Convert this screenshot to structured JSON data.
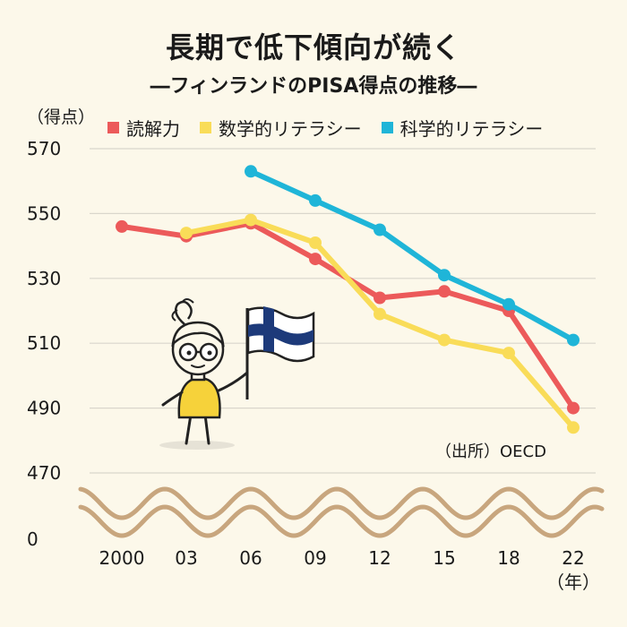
{
  "header": {
    "title": "長期で低下傾向が続く",
    "subtitle": "―フィンランドのPISA得点の推移―"
  },
  "chart_data": {
    "type": "line",
    "x": [
      "2000",
      "03",
      "06",
      "09",
      "12",
      "15",
      "18",
      "22"
    ],
    "x_unit_label": "（年）",
    "y_unit_label": "（得点）",
    "yticks": [
      0,
      470,
      490,
      510,
      530,
      550,
      570
    ],
    "ylim": [
      470,
      570
    ],
    "axis_break": true,
    "grid": true,
    "series": [
      {
        "name": "読解力",
        "color": "#ec5a5a",
        "values": [
          546,
          543,
          547,
          536,
          524,
          526,
          520,
          490
        ]
      },
      {
        "name": "数学的リテラシー",
        "color": "#f9dc58",
        "values": [
          null,
          544,
          548,
          541,
          519,
          511,
          507,
          484
        ]
      },
      {
        "name": "科学的リテラシー",
        "color": "#1fb5d8",
        "values": [
          null,
          null,
          563,
          554,
          545,
          531,
          522,
          511
        ]
      }
    ],
    "source": "（出所）OECD"
  },
  "colors": {
    "background": "#fcf8ea",
    "wave": "#c8a67e",
    "grid": "#d9d6cc"
  },
  "illustration": {
    "figure": "girl-holding-finland-flag",
    "flag_colors": [
      "#ffffff",
      "#1d3a7a"
    ],
    "shirt_color": "#f6d23a"
  }
}
